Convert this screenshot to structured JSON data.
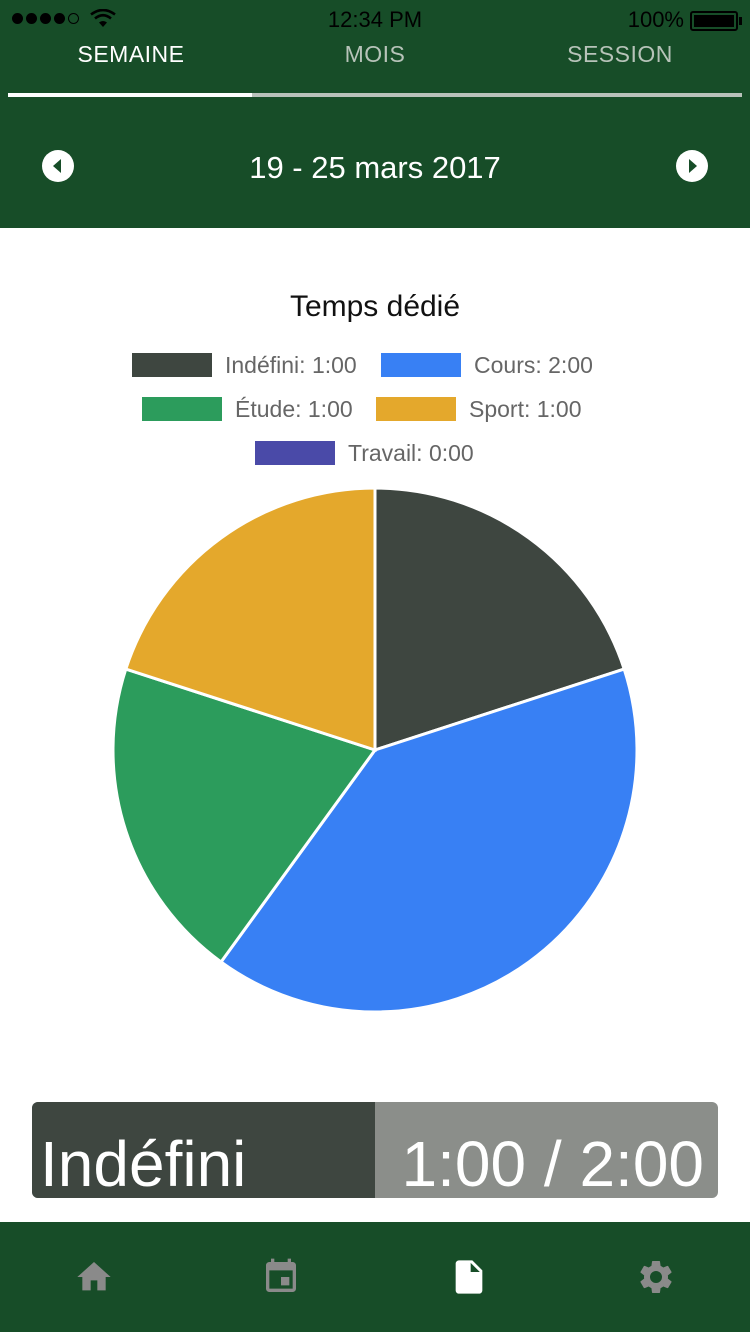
{
  "status_bar": {
    "time": "12:34 PM",
    "battery": "100%",
    "signal_icon": "signal-dots-icon",
    "wifi_icon": "wifi-icon",
    "battery_icon": "battery-icon"
  },
  "tabs": [
    {
      "label": "SEMAINE",
      "active": true
    },
    {
      "label": "MOIS",
      "active": false
    },
    {
      "label": "SESSION",
      "active": false
    }
  ],
  "period": {
    "label": "19 - 25 mars 2017",
    "prev_icon": "chevron-left-circle-icon",
    "next_icon": "chevron-right-circle-icon"
  },
  "chart_data": {
    "type": "pie",
    "title": "Temps dédié",
    "legend_position": "top",
    "series": [
      {
        "name": "Indéfini",
        "label": "Indéfini: 1:00",
        "value": 1,
        "color": "#3e4640"
      },
      {
        "name": "Cours",
        "label": "Cours: 2:00",
        "value": 2,
        "color": "#3880f4"
      },
      {
        "name": "Étude",
        "label": "Étude: 1:00",
        "value": 1,
        "color": "#2c9c5c"
      },
      {
        "name": "Sport",
        "label": "Sport: 1:00",
        "value": 1,
        "color": "#e4a82c"
      },
      {
        "name": "Travail",
        "label": "Travail: 0:00",
        "value": 0,
        "color": "#4a4aa8"
      }
    ]
  },
  "summary": {
    "name": "Indéfini",
    "value": "1:00 / 2:00",
    "fraction": 0.5
  },
  "bottom_nav": [
    {
      "name": "home",
      "icon": "home-icon",
      "active": false
    },
    {
      "name": "calendar",
      "icon": "calendar-icon",
      "active": false
    },
    {
      "name": "report",
      "icon": "document-icon",
      "active": true
    },
    {
      "name": "settings",
      "icon": "gear-icon",
      "active": false
    }
  ],
  "colors": {
    "header_bg": "#174d28",
    "tab_active": "#ffffff",
    "tab_inactive": "#b7c3b9",
    "nav_active": "#ffffff",
    "nav_inactive": "#8a8a8a"
  }
}
